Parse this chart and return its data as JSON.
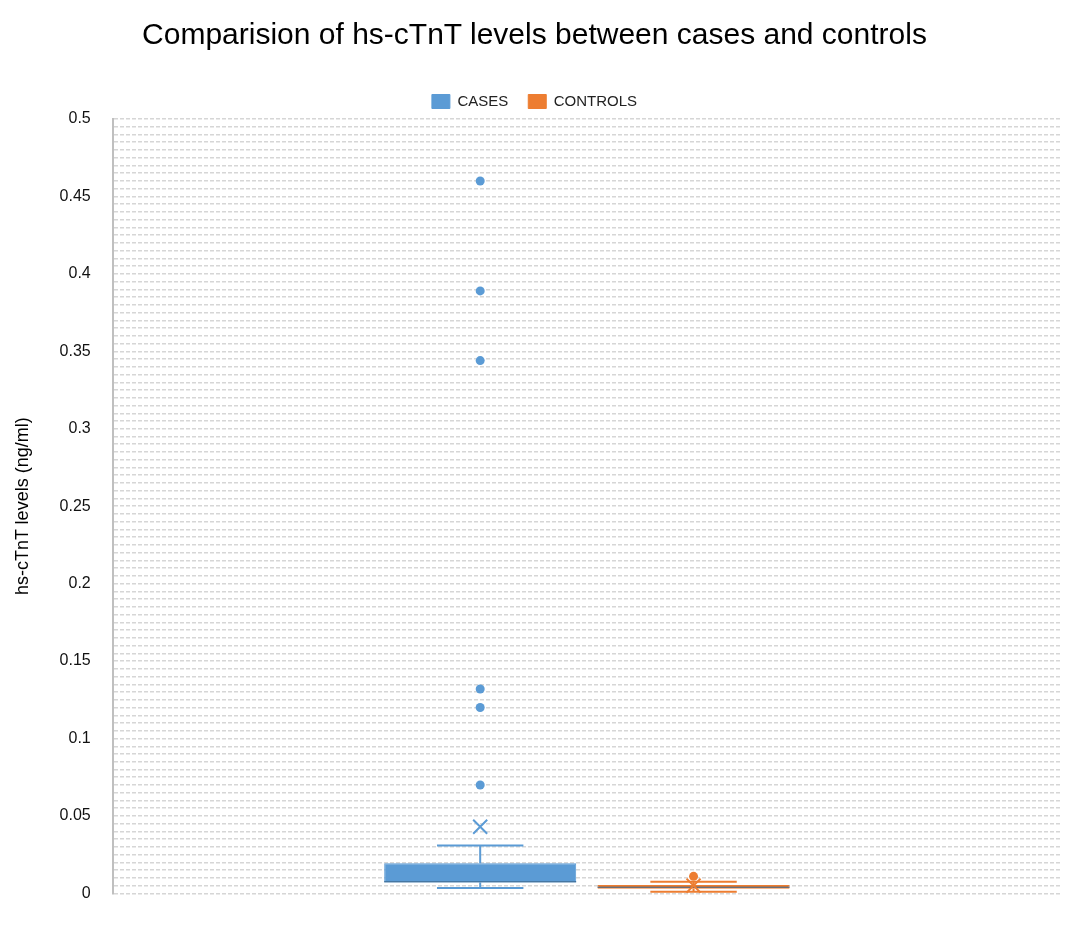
{
  "chart_data": {
    "type": "box",
    "title": "Comparision of hs-cTnT levels between cases and controls",
    "ylabel": "hs-cTnT levels (ng/ml)",
    "categories": [
      null
    ],
    "series": [
      {
        "name": "CASES",
        "color": "#5b9bd5",
        "boxes": [
          {
            "low": 0.0035,
            "q1": 0.007,
            "median": 0.0075,
            "q3": 0.0195,
            "high": 0.031,
            "mean": 0.043,
            "outliers": [
              0.07,
              0.12,
              0.132,
              0.344,
              0.389,
              0.46
            ]
          }
        ]
      },
      {
        "name": "CONTROLS",
        "color": "#ed7d31",
        "boxes": [
          {
            "low": 0.001,
            "q1": 0.003,
            "median": 0.004,
            "q3": 0.0055,
            "high": 0.0075,
            "mean": 0.005,
            "outliers": [
              0.011
            ]
          }
        ]
      }
    ],
    "ylim": [
      0,
      0.5
    ],
    "yticks": [
      0,
      {
        "value": 0.005,
        "label": null
      },
      {
        "value": 0.01,
        "label": null
      },
      {
        "value": 0.015,
        "label": null
      },
      {
        "value": 0.02,
        "label": null
      },
      {
        "value": 0.025,
        "label": null
      },
      {
        "value": 0.03,
        "label": null
      },
      {
        "value": 0.035,
        "label": null
      },
      {
        "value": 0.04,
        "label": null
      },
      {
        "value": 0.045,
        "label": null
      },
      0.05,
      {
        "value": 0.055,
        "label": null
      },
      {
        "value": 0.06,
        "label": null
      },
      {
        "value": 0.065,
        "label": null
      },
      {
        "value": 0.07,
        "label": null
      },
      {
        "value": 0.075,
        "label": null
      },
      {
        "value": 0.08,
        "label": null
      },
      {
        "value": 0.085,
        "label": null
      },
      {
        "value": 0.09,
        "label": null
      },
      {
        "value": 0.095,
        "label": null
      },
      0.1,
      {
        "value": 0.105,
        "label": null
      },
      {
        "value": 0.11,
        "label": null
      },
      {
        "value": 0.115,
        "label": null
      },
      {
        "value": 0.12,
        "label": null
      },
      {
        "value": 0.125,
        "label": null
      },
      {
        "value": 0.13,
        "label": null
      },
      {
        "value": 0.135,
        "label": null
      },
      {
        "value": 0.14,
        "label": null
      },
      {
        "value": 0.145,
        "label": null
      },
      0.15,
      {
        "value": 0.155,
        "label": null
      },
      {
        "value": 0.16,
        "label": null
      },
      {
        "value": 0.165,
        "label": null
      },
      {
        "value": 0.17,
        "label": null
      },
      {
        "value": 0.175,
        "label": null
      },
      {
        "value": 0.18,
        "label": null
      },
      {
        "value": 0.185,
        "label": null
      },
      {
        "value": 0.19,
        "label": null
      },
      {
        "value": 0.195,
        "label": null
      },
      0.2,
      {
        "value": 0.205,
        "label": null
      },
      {
        "value": 0.21,
        "label": null
      },
      {
        "value": 0.215,
        "label": null
      },
      {
        "value": 0.22,
        "label": null
      },
      {
        "value": 0.225,
        "label": null
      },
      {
        "value": 0.23,
        "label": null
      },
      {
        "value": 0.235,
        "label": null
      },
      {
        "value": 0.24,
        "label": null
      },
      {
        "value": 0.245,
        "label": null
      },
      0.25,
      {
        "value": 0.255,
        "label": null
      },
      {
        "value": 0.26,
        "label": null
      },
      {
        "value": 0.265,
        "label": null
      },
      {
        "value": 0.27,
        "label": null
      },
      {
        "value": 0.275,
        "label": null
      },
      {
        "value": 0.28,
        "label": null
      },
      {
        "value": 0.285,
        "label": null
      },
      {
        "value": 0.29,
        "label": null
      },
      {
        "value": 0.295,
        "label": null
      },
      0.3,
      {
        "value": 0.305,
        "label": null
      },
      {
        "value": 0.31,
        "label": null
      },
      {
        "value": 0.315,
        "label": null
      },
      {
        "value": 0.32,
        "label": null
      },
      {
        "value": 0.325,
        "label": null
      },
      {
        "value": 0.33,
        "label": null
      },
      {
        "value": 0.335,
        "label": null
      },
      {
        "value": 0.34,
        "label": null
      },
      {
        "value": 0.345,
        "label": null
      },
      0.35,
      {
        "value": 0.355,
        "label": null
      },
      {
        "value": 0.36,
        "label": null
      },
      {
        "value": 0.365,
        "label": null
      },
      {
        "value": 0.37,
        "label": null
      },
      {
        "value": 0.375,
        "label": null
      },
      {
        "value": 0.38,
        "label": null
      },
      {
        "value": 0.385,
        "label": null
      },
      {
        "value": 0.39,
        "label": null
      },
      {
        "value": 0.395,
        "label": null
      },
      0.4,
      {
        "value": 0.405,
        "label": null
      },
      {
        "value": 0.41,
        "label": null
      },
      {
        "value": 0.415,
        "label": null
      },
      {
        "value": 0.42,
        "label": null
      },
      {
        "value": 0.425,
        "label": null
      },
      {
        "value": 0.43,
        "label": null
      },
      {
        "value": 0.435,
        "label": null
      },
      {
        "value": 0.44,
        "label": null
      },
      {
        "value": 0.445,
        "label": null
      },
      0.45,
      {
        "value": 0.455,
        "label": null
      },
      {
        "value": 0.46,
        "label": null
      },
      {
        "value": 0.465,
        "label": null
      },
      {
        "value": 0.47,
        "label": null
      },
      {
        "value": 0.475,
        "label": null
      },
      {
        "value": 0.48,
        "label": null
      },
      {
        "value": 0.485,
        "label": null
      },
      {
        "value": 0.49,
        "label": null
      },
      {
        "value": 0.495,
        "label": null
      },
      0.5
    ],
    "grid": "y",
    "legend": "top",
    "marker": "circle"
  }
}
